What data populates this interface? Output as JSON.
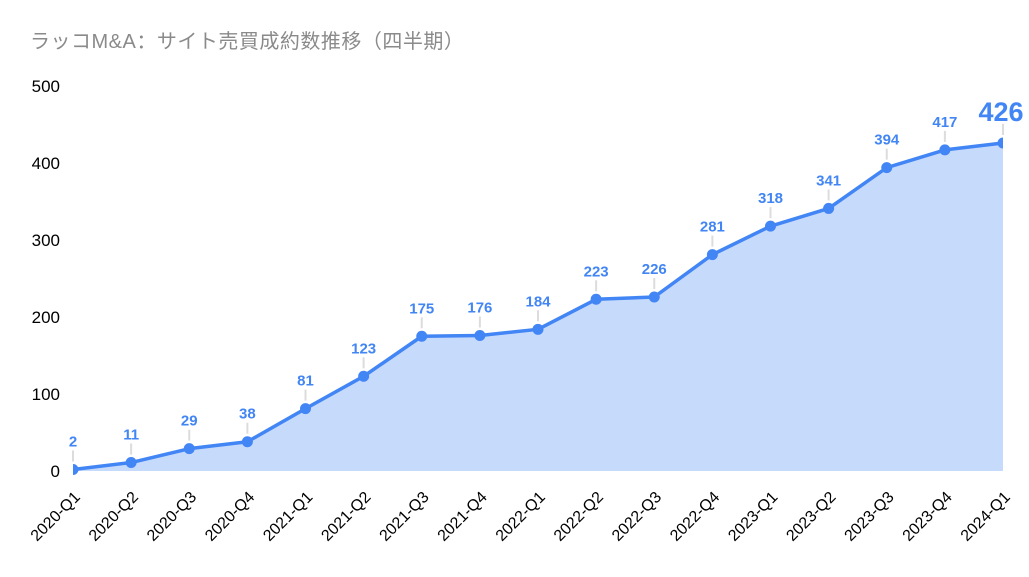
{
  "chart_data": {
    "type": "area",
    "title": "ラッコM&A：サイト売買成約数推移（四半期）",
    "categories": [
      "2020-Q1",
      "2020-Q2",
      "2020-Q3",
      "2020-Q4",
      "2021-Q1",
      "2021-Q2",
      "2021-Q3",
      "2021-Q4",
      "2022-Q1",
      "2022-Q2",
      "2022-Q3",
      "2022-Q4",
      "2023-Q1",
      "2023-Q2",
      "2023-Q3",
      "2023-Q4",
      "2024-Q1"
    ],
    "values": [
      2,
      11,
      29,
      38,
      81,
      123,
      175,
      176,
      184,
      223,
      226,
      281,
      318,
      341,
      394,
      417,
      426
    ],
    "xlabel": "",
    "ylabel": "",
    "ylim": [
      0,
      500
    ],
    "yticks": [
      0,
      100,
      200,
      300,
      400,
      500
    ],
    "grid": false,
    "legend": "none",
    "data_labels_visible": true,
    "last_point_emphasized": true,
    "colors": {
      "line": "#4285f4",
      "marker": "#4285f4",
      "fill": "rgba(66,133,244,0.30)",
      "data_label": "#4285f4",
      "axis_text": "#000000",
      "title_text": "#8a8a8a",
      "leader_line": "#dcdcdc",
      "background": "#ffffff"
    }
  }
}
